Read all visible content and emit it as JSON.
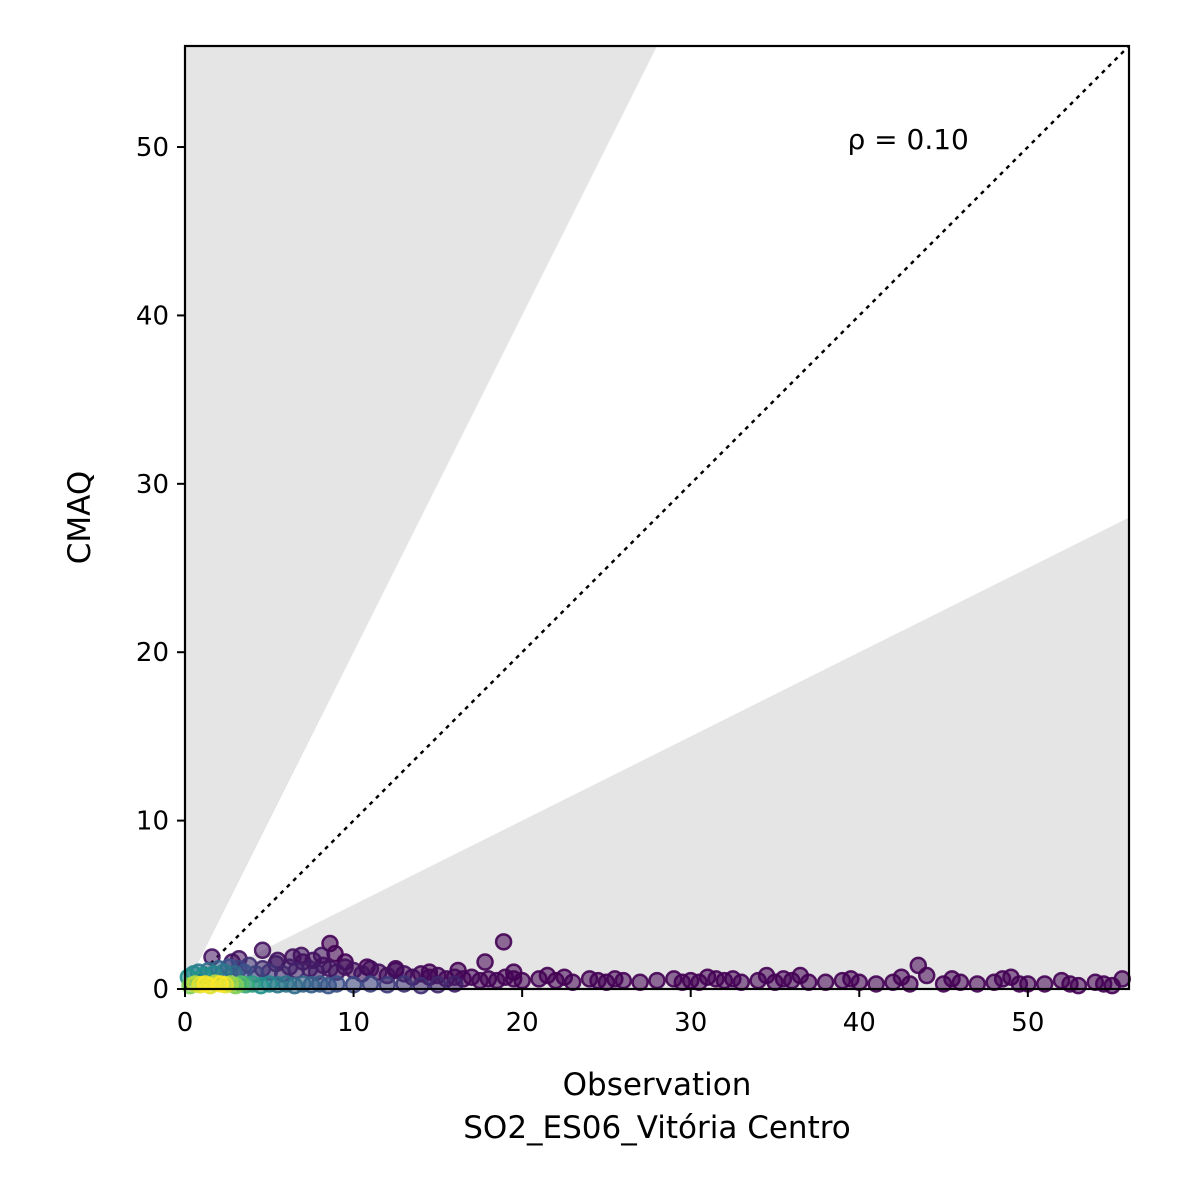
{
  "chart_data": {
    "type": "scatter",
    "xlabel": "Observation",
    "xlabel_line2": "SO2_ES06_Vitória Centro",
    "ylabel": "CMAQ",
    "xlim": [
      0,
      56
    ],
    "ylim": [
      0,
      56
    ],
    "x_ticks": [
      0,
      10,
      20,
      30,
      40,
      50
    ],
    "y_ticks": [
      0,
      10,
      20,
      30,
      40,
      50
    ],
    "annotation": "ρ = 0.10",
    "reference_line": {
      "style": "dotted",
      "slope": 1
    },
    "factor_of_two_band_slopes": [
      0.5,
      2
    ],
    "shading_color": "#e5e5e5",
    "colormap": [
      "#440154",
      "#3b528b",
      "#21918c",
      "#5ec962",
      "#fde725"
    ],
    "points": [
      [
        0.3,
        0.2,
        0.8
      ],
      [
        0.6,
        0.3,
        0.9
      ],
      [
        0.9,
        0.25,
        0.95
      ],
      [
        1.2,
        0.3,
        1.0
      ],
      [
        1.5,
        0.2,
        0.95
      ],
      [
        1.8,
        0.35,
        0.9
      ],
      [
        2.1,
        0.3,
        1.0
      ],
      [
        2.4,
        0.25,
        0.95
      ],
      [
        2.7,
        0.3,
        0.85
      ],
      [
        3.0,
        0.2,
        0.8
      ],
      [
        3.3,
        0.3,
        0.7
      ],
      [
        3.6,
        0.25,
        0.6
      ],
      [
        4.0,
        0.3,
        0.55
      ],
      [
        4.5,
        0.2,
        0.5
      ],
      [
        5.0,
        0.3,
        0.45
      ],
      [
        5.5,
        0.25,
        0.4
      ],
      [
        6.0,
        0.3,
        0.38
      ],
      [
        6.5,
        0.2,
        0.35
      ],
      [
        7.0,
        0.3,
        0.32
      ],
      [
        7.5,
        0.25,
        0.3
      ],
      [
        8.0,
        0.3,
        0.28
      ],
      [
        8.5,
        0.2,
        0.26
      ],
      [
        9.0,
        0.3,
        0.24
      ],
      [
        10.0,
        0.25,
        0.22
      ],
      [
        11.0,
        0.3,
        0.2
      ],
      [
        12.0,
        0.25,
        0.18
      ],
      [
        13.0,
        0.3,
        0.16
      ],
      [
        14.0,
        0.2,
        0.14
      ],
      [
        15.0,
        0.25,
        0.12
      ],
      [
        16.0,
        0.3,
        0.1
      ],
      [
        0.2,
        0.7,
        0.5
      ],
      [
        0.5,
        0.9,
        0.45
      ],
      [
        0.8,
        1.0,
        0.4
      ],
      [
        1.1,
        0.8,
        0.5
      ],
      [
        1.4,
        1.1,
        0.35
      ],
      [
        1.7,
        0.9,
        0.45
      ],
      [
        2.0,
        1.2,
        0.3
      ],
      [
        2.3,
        1.0,
        0.4
      ],
      [
        2.6,
        1.3,
        0.25
      ],
      [
        2.9,
        0.9,
        0.35
      ],
      [
        3.2,
        1.2,
        0.2
      ],
      [
        3.5,
        1.0,
        0.25
      ],
      [
        3.8,
        1.4,
        0.15
      ],
      [
        4.2,
        0.9,
        0.2
      ],
      [
        4.6,
        1.2,
        0.12
      ],
      [
        5.0,
        1.0,
        0.15
      ],
      [
        5.4,
        1.5,
        0.08
      ],
      [
        5.8,
        0.9,
        0.12
      ],
      [
        6.2,
        1.3,
        0.08
      ],
      [
        6.6,
        1.1,
        0.1
      ],
      [
        7.0,
        1.6,
        0.05
      ],
      [
        7.4,
        1.2,
        0.08
      ],
      [
        7.8,
        1.0,
        0.08
      ],
      [
        8.2,
        1.4,
        0.05
      ],
      [
        8.6,
        1.2,
        0.06
      ],
      [
        9.0,
        1.0,
        0.06
      ],
      [
        9.5,
        1.3,
        0.04
      ],
      [
        10.0,
        1.1,
        0.05
      ],
      [
        10.5,
        0.9,
        0.05
      ],
      [
        11.0,
        1.2,
        0.03
      ],
      [
        11.5,
        1.0,
        0.04
      ],
      [
        12.0,
        0.8,
        0.04
      ],
      [
        12.5,
        1.1,
        0.03
      ],
      [
        13.0,
        0.9,
        0.03
      ],
      [
        13.5,
        0.7,
        0.03
      ],
      [
        14.0,
        0.9,
        0.02
      ],
      [
        14.5,
        0.7,
        0.02
      ],
      [
        15.0,
        0.8,
        0.02
      ],
      [
        15.5,
        0.6,
        0.02
      ],
      [
        16.0,
        0.7,
        0.02
      ],
      [
        16.5,
        0.6,
        0.01
      ],
      [
        17.0,
        0.7,
        0.01
      ],
      [
        17.5,
        0.5,
        0.01
      ],
      [
        18.0,
        0.6,
        0.01
      ],
      [
        18.5,
        0.5,
        0.01
      ],
      [
        19.0,
        0.7,
        0.01
      ],
      [
        19.5,
        0.6,
        0.0
      ],
      [
        20.0,
        0.5,
        0.0
      ],
      [
        21.0,
        0.6,
        0.0
      ],
      [
        21.5,
        0.8,
        0.0
      ],
      [
        22.0,
        0.5,
        0.0
      ],
      [
        22.5,
        0.7,
        0.0
      ],
      [
        23.0,
        0.4,
        0.0
      ],
      [
        24.0,
        0.6,
        0.0
      ],
      [
        24.5,
        0.5,
        0.0
      ],
      [
        25.0,
        0.4,
        0.0
      ],
      [
        25.5,
        0.6,
        0.0
      ],
      [
        26.0,
        0.5,
        0.0
      ],
      [
        27.0,
        0.4,
        0.0
      ],
      [
        28.0,
        0.5,
        0.0
      ],
      [
        29.0,
        0.6,
        0.0
      ],
      [
        29.5,
        0.4,
        0.0
      ],
      [
        30.0,
        0.5,
        0.0
      ],
      [
        30.5,
        0.4,
        0.0
      ],
      [
        31.0,
        0.7,
        0.0
      ],
      [
        31.5,
        0.6,
        0.0
      ],
      [
        32.0,
        0.5,
        0.0
      ],
      [
        32.5,
        0.6,
        0.0
      ],
      [
        33.0,
        0.4,
        0.0
      ],
      [
        34.0,
        0.5,
        0.0
      ],
      [
        34.5,
        0.8,
        0.0
      ],
      [
        35.0,
        0.4,
        0.0
      ],
      [
        35.5,
        0.6,
        0.0
      ],
      [
        36.0,
        0.5,
        0.0
      ],
      [
        36.5,
        0.8,
        0.0
      ],
      [
        37.0,
        0.4,
        0.0
      ],
      [
        38.0,
        0.4,
        0.0
      ],
      [
        39.0,
        0.5,
        0.0
      ],
      [
        39.5,
        0.6,
        0.0
      ],
      [
        40.0,
        0.4,
        0.0
      ],
      [
        41.0,
        0.3,
        0.0
      ],
      [
        42.0,
        0.4,
        0.0
      ],
      [
        42.5,
        0.7,
        0.0
      ],
      [
        43.0,
        0.3,
        0.0
      ],
      [
        43.5,
        1.4,
        0.0
      ],
      [
        44.0,
        0.8,
        0.0
      ],
      [
        45.0,
        0.3,
        0.0
      ],
      [
        45.5,
        0.6,
        0.0
      ],
      [
        46.0,
        0.4,
        0.0
      ],
      [
        47.0,
        0.3,
        0.0
      ],
      [
        48.0,
        0.4,
        0.0
      ],
      [
        48.5,
        0.6,
        0.0
      ],
      [
        49.0,
        0.7,
        0.0
      ],
      [
        49.5,
        0.3,
        0.0
      ],
      [
        50.0,
        0.3,
        0.0
      ],
      [
        51.0,
        0.3,
        0.0
      ],
      [
        52.0,
        0.5,
        0.0
      ],
      [
        52.5,
        0.3,
        0.0
      ],
      [
        53.0,
        0.2,
        0.0
      ],
      [
        54.0,
        0.4,
        0.0
      ],
      [
        54.5,
        0.3,
        0.0
      ],
      [
        55.0,
        0.2,
        0.0
      ],
      [
        55.6,
        0.6,
        0.0
      ],
      [
        1.6,
        1.9,
        0.05
      ],
      [
        2.8,
        1.6,
        0.05
      ],
      [
        4.6,
        2.3,
        0.05
      ],
      [
        6.4,
        1.9,
        0.05
      ],
      [
        7.6,
        1.7,
        0.05
      ],
      [
        8.1,
        2.0,
        0.05
      ],
      [
        8.6,
        2.7,
        0.0
      ],
      [
        8.9,
        2.1,
        0.0
      ],
      [
        9.5,
        1.6,
        0.0
      ],
      [
        17.8,
        1.6,
        0.0
      ],
      [
        18.9,
        2.8,
        0.0
      ],
      [
        10.8,
        1.3,
        0.0
      ],
      [
        12.5,
        1.2,
        0.0
      ],
      [
        14.5,
        1.0,
        0.0
      ],
      [
        16.2,
        1.1,
        0.0
      ],
      [
        19.5,
        1.0,
        0.0
      ],
      [
        3.2,
        1.8,
        0.05
      ],
      [
        5.5,
        1.7,
        0.05
      ],
      [
        6.9,
        2.0,
        0.05
      ]
    ]
  }
}
